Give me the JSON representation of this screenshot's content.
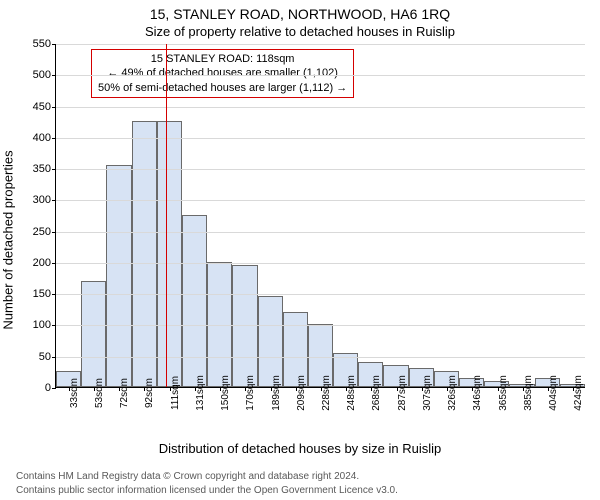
{
  "titles": {
    "main": "15, STANLEY ROAD, NORTHWOOD, HA6 1RQ",
    "sub": "Size of property relative to detached houses in Ruislip"
  },
  "axes": {
    "ylabel": "Number of detached properties",
    "xlabel": "Distribution of detached houses by size in Ruislip",
    "ylim": [
      0,
      550
    ],
    "ytick_step": 50,
    "grid_color": "#d9d9d9"
  },
  "histogram": {
    "type": "histogram",
    "categories": [
      "33sqm",
      "53sqm",
      "72sqm",
      "92sqm",
      "111sqm",
      "131sqm",
      "150sqm",
      "170sqm",
      "189sqm",
      "209sqm",
      "228sqm",
      "248sqm",
      "268sqm",
      "287sqm",
      "307sqm",
      "326sqm",
      "346sqm",
      "365sqm",
      "385sqm",
      "404sqm",
      "424sqm"
    ],
    "values": [
      25,
      170,
      355,
      425,
      425,
      275,
      200,
      195,
      145,
      120,
      100,
      55,
      40,
      35,
      30,
      25,
      15,
      10,
      5,
      15,
      5
    ],
    "bar_fill": "#d7e3f4",
    "bar_stroke": "#6a6a6a",
    "bar_stroke_width": 1
  },
  "marker_line": {
    "category_index": 4,
    "fraction_into_bin": 0.35,
    "color": "#d40000",
    "width": 1
  },
  "annotation": {
    "border_color": "#d40000",
    "border_width": 1,
    "lines": [
      "15 STANLEY ROAD: 118sqm",
      "← 49% of detached houses are smaller (1,102)",
      "50% of semi-detached houses are larger (1,112) →"
    ]
  },
  "footer": {
    "line1": "Contains HM Land Registry data © Crown copyright and database right 2024.",
    "line2": "Contains public sector information licensed under the Open Government Licence v3.0."
  },
  "colors": {
    "text": "#000000",
    "footer_text": "#595959",
    "background": "#ffffff"
  },
  "fonts": {
    "title_size_pt": 11,
    "axis_label_size_pt": 10,
    "tick_size_pt": 8,
    "annot_size_pt": 8,
    "footer_size_pt": 8
  }
}
